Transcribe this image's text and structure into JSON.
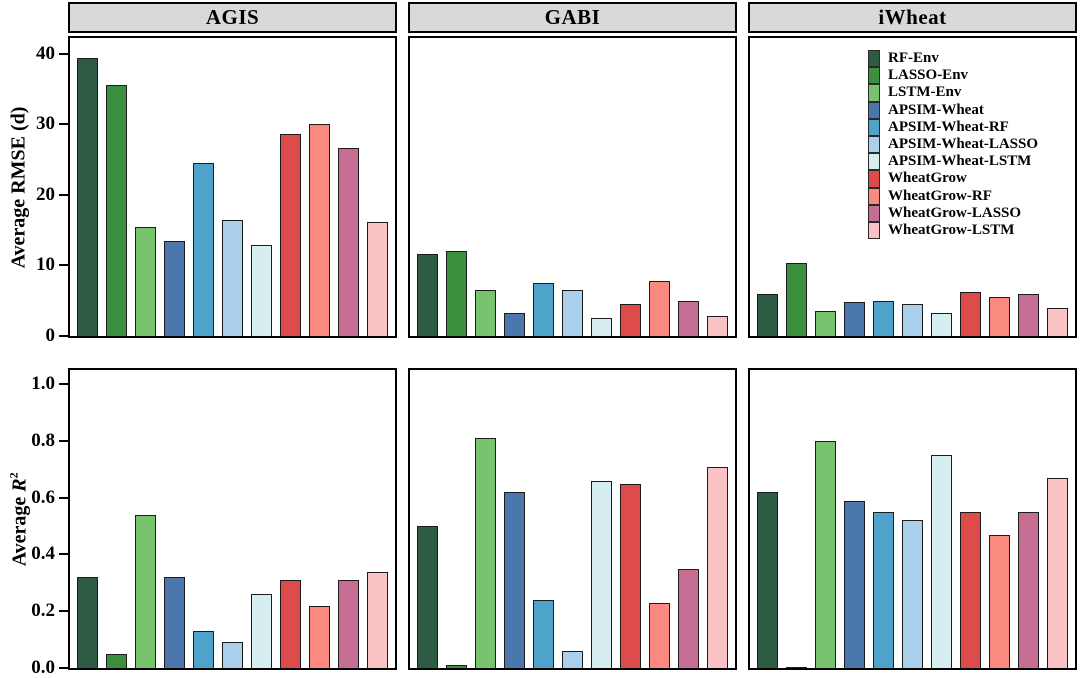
{
  "chart_data": {
    "type": "bar",
    "layout": {
      "rows": 2,
      "cols": 3,
      "faceted": true,
      "grid": false,
      "legend_position": "inside top-right panel"
    },
    "facet_columns": [
      "AGIS",
      "GABI",
      "iWheat"
    ],
    "series": [
      {
        "name": "RF-Env",
        "color": "#2e5b44"
      },
      {
        "name": "LASSO-Env",
        "color": "#3c8f3e"
      },
      {
        "name": "LSTM-Env",
        "color": "#78c46e"
      },
      {
        "name": "APSIM-Wheat",
        "color": "#4b77ad"
      },
      {
        "name": "APSIM-Wheat-RF",
        "color": "#4fa3cb"
      },
      {
        "name": "APSIM-Wheat-LASSO",
        "color": "#aad0eb"
      },
      {
        "name": "APSIM-Wheat-LSTM",
        "color": "#d7eef1"
      },
      {
        "name": "WheatGrow",
        "color": "#dd4b4b"
      },
      {
        "name": "WheatGrow-RF",
        "color": "#fa8a80"
      },
      {
        "name": "WheatGrow-LASSO",
        "color": "#c66d94"
      },
      {
        "name": "WheatGrow-LSTM",
        "color": "#f9c2c4"
      }
    ],
    "rows": [
      {
        "ylabel": "Average RMSE (d)",
        "yticks": [
          0,
          10,
          20,
          30,
          40
        ],
        "ytick_labels": [
          "0",
          "10",
          "20",
          "30",
          "40"
        ],
        "ylim": [
          0,
          42.2
        ],
        "panels": [
          {
            "facet": "AGIS",
            "values": [
              39.4,
              35.6,
              15.5,
              13.4,
              24.5,
              16.4,
              12.9,
              28.6,
              30.0,
              26.6,
              16.1
            ]
          },
          {
            "facet": "GABI",
            "values": [
              11.6,
              12.1,
              6.5,
              3.3,
              7.5,
              6.5,
              2.6,
              4.6,
              7.8,
              5.0,
              2.9
            ]
          },
          {
            "facet": "iWheat",
            "values": [
              5.9,
              10.3,
              3.6,
              4.8,
              5.0,
              4.5,
              3.3,
              6.3,
              5.5,
              5.9,
              4.0
            ]
          }
        ]
      },
      {
        "ylabel": "Average R²",
        "ylabel_parts": {
          "prefix": "Average ",
          "symbol": "R",
          "superscript": "2"
        },
        "yticks": [
          0,
          0.2,
          0.4,
          0.6,
          0.8,
          1.0
        ],
        "ytick_labels": [
          "0.0",
          "0.2",
          "0.4",
          "0.6",
          "0.8",
          "1.0"
        ],
        "ylim": [
          0,
          1.05
        ],
        "panels": [
          {
            "facet": "AGIS",
            "values": [
              0.32,
              0.05,
              0.54,
              0.32,
              0.13,
              0.09,
              0.26,
              0.31,
              0.22,
              0.31,
              0.34
            ]
          },
          {
            "facet": "GABI",
            "values": [
              0.5,
              0.01,
              0.81,
              0.62,
              0.24,
              0.06,
              0.66,
              0.65,
              0.23,
              0.35,
              0.71
            ]
          },
          {
            "facet": "iWheat",
            "values": [
              0.62,
              0.005,
              0.8,
              0.59,
              0.55,
              0.52,
              0.75,
              0.55,
              0.47,
              0.55,
              0.67
            ]
          }
        ]
      }
    ]
  },
  "colors": {
    "header_bg": "#d9d9d9",
    "panel_border": "#000000",
    "bar_border": "#1c1c1c",
    "background": "#ffffff"
  }
}
